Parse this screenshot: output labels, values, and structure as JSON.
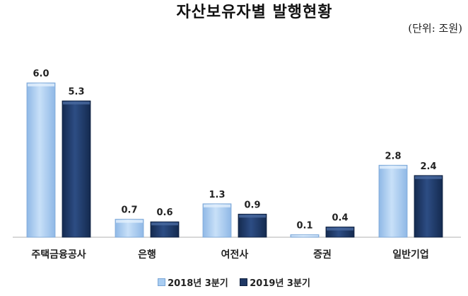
{
  "chart_data": {
    "type": "bar",
    "title": "자산보유자별 발행현황",
    "unit_note": "(단위: 조원)",
    "categories": [
      "주택금융공사",
      "은행",
      "여전사",
      "증권",
      "일반기업"
    ],
    "series": [
      {
        "name": "2018년 3분기",
        "values": [
          6.0,
          0.7,
          1.3,
          0.1,
          2.8
        ],
        "color": "#a9cdf2"
      },
      {
        "name": "2019년 3분기",
        "values": [
          5.3,
          0.6,
          0.9,
          0.4,
          2.4
        ],
        "color": "#1f3864"
      }
    ],
    "data_labels": [
      [
        "6.0",
        "0.7",
        "1.3",
        "0.1",
        "2.8"
      ],
      [
        "5.3",
        "0.6",
        "0.9",
        "0.4",
        "2.4"
      ]
    ],
    "xlabel": "",
    "ylabel": "",
    "ylim": [
      0,
      6.0
    ],
    "grid": false,
    "legend_position": "bottom"
  }
}
